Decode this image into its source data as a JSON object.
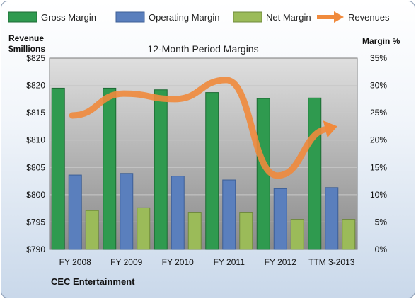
{
  "chart_data": {
    "type": "bar",
    "title": "12-Month Period Margins",
    "company": "CEC Entertainment",
    "left_axis_label_line1": "Revenue",
    "left_axis_label_line2": "$millions",
    "right_axis_label": "Margin %",
    "categories": [
      "FY 2008",
      "FY 2009",
      "FY 2010",
      "FY 2011",
      "FY 2012",
      "TTM 3-2013"
    ],
    "left_ylim": [
      790,
      825
    ],
    "left_ticks": [
      "$790",
      "$795",
      "$800",
      "$805",
      "$810",
      "$815",
      "$820",
      "$825"
    ],
    "right_ylim": [
      0,
      35
    ],
    "right_ticks": [
      "0%",
      "5%",
      "10%",
      "15%",
      "20%",
      "25%",
      "30%",
      "35%"
    ],
    "series": [
      {
        "name": "Gross Margin",
        "type": "bar",
        "axis": "right",
        "color": "#2f9a4f",
        "values": [
          29.5,
          29.5,
          29.2,
          28.7,
          27.6,
          27.7
        ]
      },
      {
        "name": "Operating Margin",
        "type": "bar",
        "axis": "right",
        "color": "#5a7fbd",
        "values": [
          13.6,
          13.9,
          13.4,
          12.7,
          11.1,
          11.3
        ]
      },
      {
        "name": "Net Margin",
        "type": "bar",
        "axis": "right",
        "color": "#9bbb59",
        "values": [
          7.1,
          7.6,
          6.8,
          6.8,
          5.5,
          5.5
        ]
      },
      {
        "name": "Revenues",
        "type": "line",
        "axis": "left",
        "color": "#f08a3c",
        "values": [
          814.5,
          818.5,
          817.5,
          821,
          803.5,
          812
        ]
      }
    ],
    "grid": true,
    "legend_position": "top"
  }
}
